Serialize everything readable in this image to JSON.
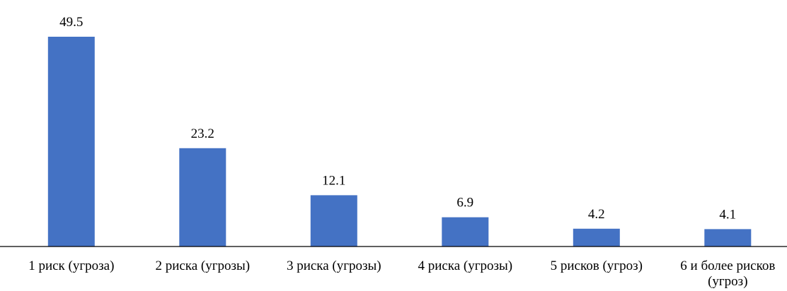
{
  "chart_data": {
    "type": "bar",
    "title": "",
    "xlabel": "",
    "ylabel": "",
    "categories": [
      [
        "1 риск (угроза)"
      ],
      [
        "2 риска (угрозы)"
      ],
      [
        "3 риска (угрозы)"
      ],
      [
        "4 риска (угрозы)"
      ],
      [
        "5 рисков (угроз)"
      ],
      [
        "6 и более рисков",
        "(угроз)"
      ]
    ],
    "values": [
      49.5,
      23.2,
      12.1,
      6.9,
      4.2,
      4.1
    ],
    "value_labels": [
      "49.5",
      "23.2",
      "12.1",
      "6.9",
      "4.2",
      "4.1"
    ],
    "ylim": [
      0,
      49.5
    ],
    "grid": false,
    "legend": "none",
    "bar_color": "#4472C4",
    "axis_color": "#000000"
  }
}
